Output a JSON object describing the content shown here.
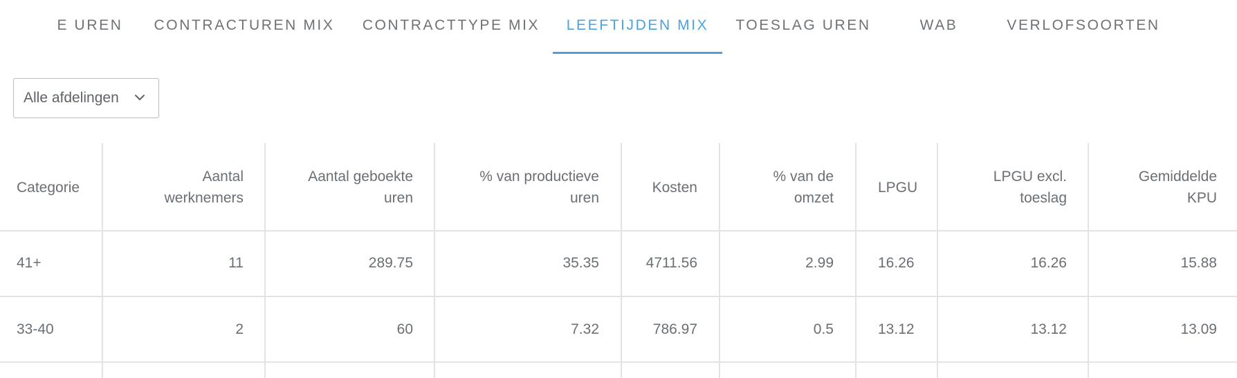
{
  "tabs": [
    {
      "label": "E UREN",
      "active": false
    },
    {
      "label": "CONTRACTUREN MIX",
      "active": false
    },
    {
      "label": "CONTRACTTYPE MIX",
      "active": false
    },
    {
      "label": "LEEFTIJDEN MIX",
      "active": true
    },
    {
      "label": "TOESLAG UREN",
      "active": false
    },
    {
      "label": "WAB",
      "active": false
    },
    {
      "label": "VERLOFSOORTEN",
      "active": false
    }
  ],
  "department_filter": {
    "selected": "Alle afdelingen",
    "icon": "chevron-down-icon"
  },
  "table": {
    "columns": [
      "Categorie",
      "Aantal\nwerknemers",
      "Aantal geboekte\nuren",
      "% van productieve\nuren",
      "Kosten",
      "% van de\nomzet",
      "LPGU",
      "LPGU excl.\ntoeslag",
      "Gemiddelde\nKPU"
    ],
    "rows": [
      [
        "41+",
        "11",
        "289.75",
        "35.35",
        "4711.56",
        "2.99",
        "16.26",
        "16.26",
        "15.88"
      ],
      [
        "33-40",
        "2",
        "60",
        "7.32",
        "786.97",
        "0.5",
        "13.12",
        "13.12",
        "13.09"
      ]
    ]
  },
  "colors": {
    "accent": "#4aa3df",
    "text": "#6a6f74",
    "grid": "#e2e3e5"
  }
}
